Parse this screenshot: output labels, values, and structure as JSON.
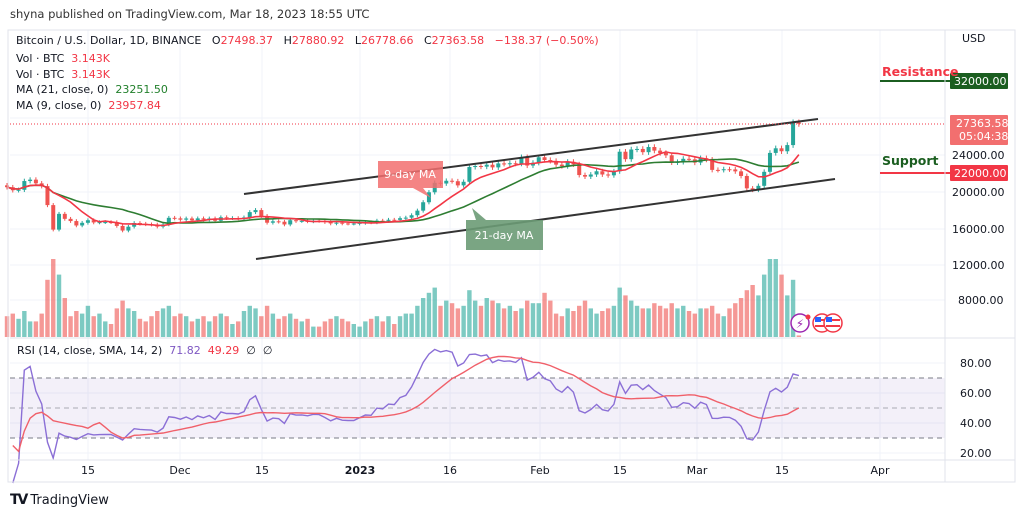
{
  "header": {
    "published": "shyna published on TradingView.com, Mar 18, 2023 18:55 UTC"
  },
  "legend": {
    "symbol": "Bitcoin / U.S. Dollar, 1D, BINANCE",
    "o_label": "O",
    "open": "27498.37",
    "h_label": "H",
    "high": "27880.92",
    "l_label": "L",
    "low": "26778.66",
    "c_label": "C",
    "close": "27363.58",
    "change": "−138.37 (−0.50%)",
    "vol1_label": "Vol · BTC",
    "vol1": "3.143K",
    "vol2_label": "Vol · BTC",
    "vol2": "3.143K",
    "ma21_label": "MA (21, close, 0)",
    "ma21": "23251.50",
    "ma9_label": "MA (9, close, 0)",
    "ma9": "23957.84",
    "rsi_label": "RSI (14, close, SMA, 14, 2)",
    "rsi": "71.82",
    "rsi_sma": "49.29",
    "na1": "∅",
    "na2": "∅"
  },
  "annotations": {
    "resistance": "Resistance",
    "resistance_price": "32000.00",
    "support": "Support",
    "support_price": "22000.00",
    "ma9_callout": "9-day MA",
    "ma21_callout": "21-day MA"
  },
  "price_scale": {
    "currency": "USD",
    "last_price": "27363.58",
    "countdown": "05:04:38",
    "ticks": [
      "24000.00",
      "20000.00",
      "16000.00",
      "12000.00",
      "8000.00"
    ],
    "rsi_ticks": [
      "80.00",
      "60.00",
      "40.00",
      "20.00"
    ]
  },
  "time_axis": [
    "15",
    "Dec",
    "15",
    "2023",
    "16",
    "Feb",
    "15",
    "Mar",
    "15",
    "Apr"
  ],
  "footer": {
    "brand": "TradingView"
  },
  "colors": {
    "up": "#26a69a",
    "down": "#ef5350",
    "ma21": "#2e7d32",
    "ma9": "#f23645",
    "rsi": "#7e57c2",
    "resistance": "#1b5e20",
    "support": "#f23645"
  },
  "chart_data": {
    "type": "candlestick",
    "title": "Bitcoin / U.S. Dollar, 1D, BINANCE",
    "start_date": "2022-11-01",
    "closes": [
      20480,
      20150,
      20200,
      21150,
      21300,
      20900,
      20600,
      18540,
      15880,
      17590,
      17050,
      16810,
      16330,
      16620,
      16900,
      16660,
      16690,
      16700,
      16690,
      16280,
      15780,
      16200,
      16600,
      16520,
      16460,
      16430,
      16210,
      16440,
      17160,
      17100,
      16960,
      17090,
      16890,
      17100,
      16970,
      17090,
      16840,
      17220,
      17130,
      17130,
      17100,
      17200,
      17780,
      18000,
      17360,
      16630,
      16780,
      16740,
      16440,
      16900,
      16820,
      16830,
      16780,
      16840,
      16830,
      16700,
      16550,
      16630,
      16550,
      16540,
      16540,
      16610,
      16680,
      16670,
      16850,
      16830,
      16950,
      16940,
      17120,
      17180,
      17440,
      17940,
      18850,
      19930,
      20960,
      20880,
      21180,
      21130,
      20680,
      21070,
      22670,
      22780,
      22710,
      22920,
      22630,
      23060,
      23010,
      23080,
      23030,
      23740,
      22830,
      23130,
      23730,
      23430,
      23330,
      22930,
      22760,
      23240,
      22960,
      21800,
      21630,
      21860,
      22210,
      21860,
      21770,
      22200,
      24330,
      23520,
      24570,
      24630,
      24280,
      24840,
      24450,
      24190,
      23940,
      23170,
      23220,
      23560,
      23500,
      23150,
      23630,
      23470,
      22360,
      22350,
      22430,
      22410,
      22200,
      21700,
      20360,
      20190,
      20630,
      22150,
      24200,
      24700,
      24380,
      25050,
      27498,
      27363.58
    ],
    "volumes_relative": [
      40,
      45,
      35,
      50,
      30,
      30,
      45,
      110,
      150,
      120,
      75,
      40,
      50,
      45,
      60,
      40,
      45,
      30,
      25,
      55,
      70,
      55,
      50,
      35,
      30,
      40,
      50,
      55,
      60,
      40,
      45,
      40,
      30,
      35,
      40,
      30,
      40,
      45,
      40,
      25,
      30,
      50,
      60,
      55,
      40,
      60,
      45,
      35,
      40,
      45,
      35,
      30,
      35,
      20,
      20,
      30,
      35,
      40,
      35,
      30,
      25,
      20,
      30,
      35,
      40,
      30,
      40,
      25,
      40,
      45,
      45,
      60,
      75,
      85,
      95,
      60,
      70,
      65,
      55,
      60,
      90,
      70,
      60,
      75,
      70,
      65,
      55,
      60,
      50,
      55,
      70,
      65,
      65,
      85,
      70,
      45,
      40,
      55,
      50,
      60,
      70,
      55,
      45,
      50,
      55,
      60,
      95,
      80,
      70,
      60,
      55,
      55,
      65,
      60,
      55,
      65,
      55,
      60,
      50,
      45,
      55,
      55,
      60,
      45,
      40,
      55,
      65,
      75,
      90,
      100,
      80,
      120,
      150,
      150,
      120,
      80,
      110,
      3
    ],
    "ylim": [
      7000,
      33000
    ],
    "rsi_ylim": [
      15,
      95
    ],
    "rsi_bands": [
      30,
      50,
      70
    ],
    "grid": true
  }
}
